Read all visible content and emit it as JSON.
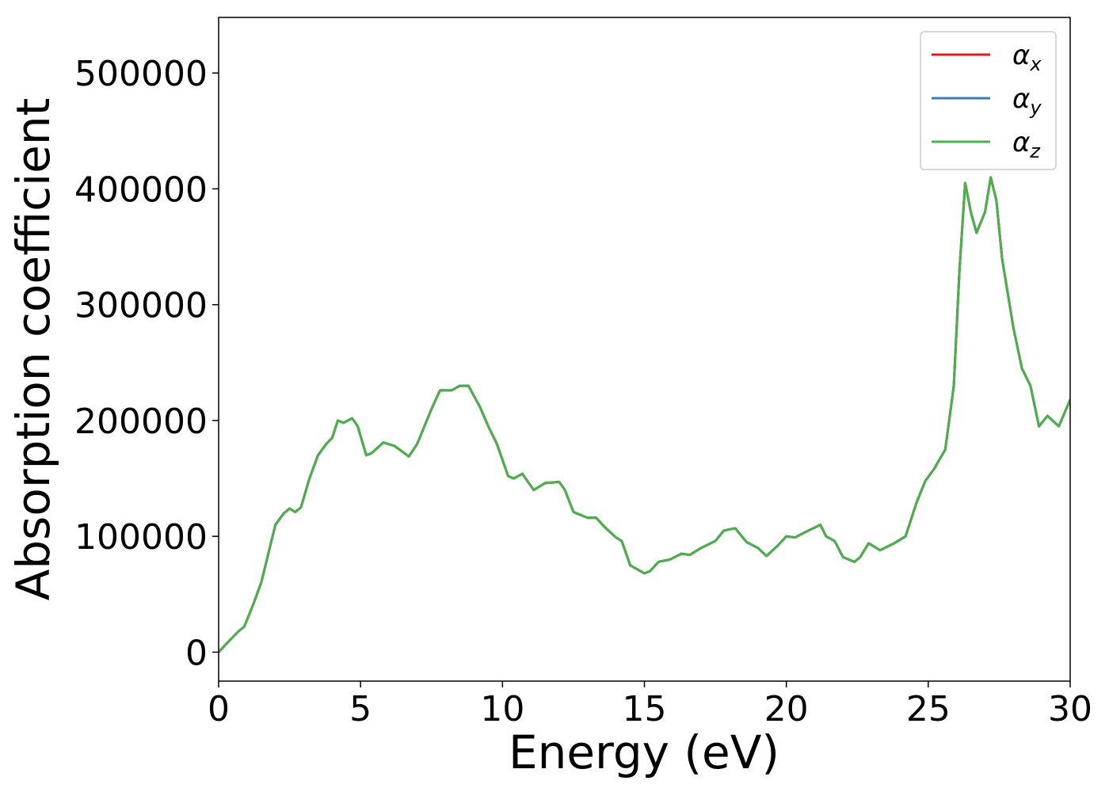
{
  "chart_data": {
    "type": "line",
    "xlabel": "Energy (eV)",
    "ylabel": "Absorption coefficient",
    "x": [
      0,
      0.3,
      0.7,
      0.9,
      1.2,
      1.5,
      1.8,
      2.0,
      2.3,
      2.5,
      2.7,
      2.9,
      3.2,
      3.5,
      3.8,
      4.0,
      4.2,
      4.4,
      4.7,
      4.9,
      5.2,
      5.4,
      5.8,
      6.2,
      6.7,
      7.0,
      7.5,
      7.8,
      8.2,
      8.5,
      8.8,
      9.2,
      9.5,
      9.8,
      10.2,
      10.4,
      10.7,
      11.1,
      11.5,
      12.0,
      12.2,
      12.5,
      13.0,
      13.3,
      13.6,
      14.0,
      14.2,
      14.5,
      15.0,
      15.2,
      15.5,
      15.9,
      16.3,
      16.6,
      17.0,
      17.5,
      17.8,
      18.2,
      18.6,
      19.0,
      19.3,
      19.7,
      20.0,
      20.3,
      20.7,
      21.2,
      21.4,
      21.7,
      22.0,
      22.4,
      22.6,
      22.9,
      23.3,
      23.8,
      24.2,
      24.6,
      24.9,
      25.2,
      25.6,
      25.9,
      26.1,
      26.3,
      26.5,
      26.7,
      27.0,
      27.2,
      27.4,
      27.6,
      28.0,
      28.3,
      28.6,
      28.9,
      29.2,
      29.6,
      30.0
    ],
    "series": [
      {
        "name": "αx",
        "color": "#e41a1c",
        "values": [
          0,
          8000,
          18000,
          22000,
          40000,
          60000,
          90000,
          110000,
          120000,
          124000,
          121000,
          125000,
          150000,
          170000,
          180000,
          185000,
          200000,
          198000,
          202000,
          195000,
          170000,
          172000,
          181000,
          178000,
          169000,
          180000,
          210000,
          226000,
          226000,
          230000,
          230000,
          212000,
          195000,
          180000,
          152000,
          150000,
          154000,
          140000,
          146000,
          147000,
          140000,
          121000,
          116000,
          116000,
          108000,
          99000,
          96000,
          75000,
          68000,
          70000,
          78000,
          80000,
          85000,
          84000,
          90000,
          96000,
          105000,
          107000,
          95000,
          90000,
          83000,
          92000,
          100000,
          99000,
          104000,
          110000,
          100000,
          96000,
          82000,
          78000,
          82000,
          94000,
          88000,
          94000,
          100000,
          130000,
          148000,
          158000,
          175000,
          230000,
          330000,
          405000,
          380000,
          362000,
          380000,
          410000,
          390000,
          340000,
          280000,
          245000,
          230000,
          195000,
          204000,
          195000,
          218000
        ]
      },
      {
        "name": "αy",
        "color": "#377eb8",
        "values": [
          0,
          8000,
          18000,
          22000,
          40000,
          60000,
          90000,
          110000,
          120000,
          124000,
          121000,
          125000,
          150000,
          170000,
          180000,
          185000,
          200000,
          198000,
          202000,
          195000,
          170000,
          172000,
          181000,
          178000,
          169000,
          180000,
          210000,
          226000,
          226000,
          230000,
          230000,
          212000,
          195000,
          180000,
          152000,
          150000,
          154000,
          140000,
          146000,
          147000,
          140000,
          121000,
          116000,
          116000,
          108000,
          99000,
          96000,
          75000,
          68000,
          70000,
          78000,
          80000,
          85000,
          84000,
          90000,
          96000,
          105000,
          107000,
          95000,
          90000,
          83000,
          92000,
          100000,
          99000,
          104000,
          110000,
          100000,
          96000,
          82000,
          78000,
          82000,
          94000,
          88000,
          94000,
          100000,
          130000,
          148000,
          158000,
          175000,
          230000,
          330000,
          405000,
          380000,
          362000,
          380000,
          410000,
          390000,
          340000,
          280000,
          245000,
          230000,
          195000,
          204000,
          195000,
          218000
        ]
      },
      {
        "name": "αz",
        "color": "#4daf4a",
        "values": [
          0,
          8000,
          18000,
          22000,
          40000,
          60000,
          90000,
          110000,
          120000,
          124000,
          121000,
          125000,
          150000,
          170000,
          180000,
          185000,
          200000,
          198000,
          202000,
          195000,
          170000,
          172000,
          181000,
          178000,
          169000,
          180000,
          210000,
          226000,
          226000,
          230000,
          230000,
          212000,
          195000,
          180000,
          152000,
          150000,
          154000,
          140000,
          146000,
          147000,
          140000,
          121000,
          116000,
          116000,
          108000,
          99000,
          96000,
          75000,
          68000,
          70000,
          78000,
          80000,
          85000,
          84000,
          90000,
          96000,
          105000,
          107000,
          95000,
          90000,
          83000,
          92000,
          100000,
          99000,
          104000,
          110000,
          100000,
          96000,
          82000,
          78000,
          82000,
          94000,
          88000,
          94000,
          100000,
          130000,
          148000,
          158000,
          175000,
          230000,
          330000,
          405000,
          380000,
          362000,
          380000,
          410000,
          390000,
          340000,
          280000,
          245000,
          230000,
          195000,
          204000,
          195000,
          218000
        ]
      }
    ],
    "xlim": [
      0,
      30
    ],
    "xticks": [
      0,
      5,
      10,
      15,
      20,
      25,
      30
    ],
    "ylim": [
      -25000,
      548000
    ],
    "yticks": [
      0,
      100000,
      200000,
      300000,
      400000,
      500000
    ],
    "grid": false,
    "legend": "upper right"
  }
}
